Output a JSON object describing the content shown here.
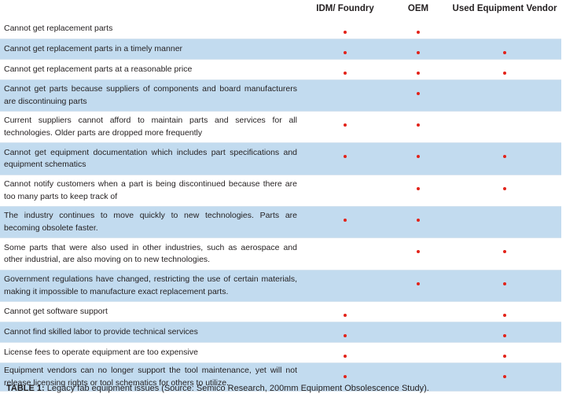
{
  "table": {
    "headers": {
      "issue": "",
      "idm": "IDM/ Foundry",
      "oem": "OEM",
      "used": "Used Equipment Vendor"
    },
    "marker_color": "#e2231a",
    "rows": [
      {
        "issue": "Cannot get replacement parts",
        "idm": true,
        "oem": true,
        "used": false
      },
      {
        "issue": "Cannot get replacement parts in a timely manner",
        "idm": true,
        "oem": true,
        "used": true
      },
      {
        "issue": "Cannot get replacement parts at a reasonable price",
        "idm": true,
        "oem": true,
        "used": true
      },
      {
        "issue": "Cannot get parts because suppliers of components and board manufacturers are discontinuing parts",
        "idm": false,
        "oem": true,
        "used": false
      },
      {
        "issue": "Current suppliers cannot afford to maintain parts and services for all technologies.  Older parts are dropped more frequently",
        "idm": true,
        "oem": true,
        "used": false
      },
      {
        "issue": "Cannot get equipment documentation which includes part specifications and equipment schematics",
        "idm": true,
        "oem": true,
        "used": true
      },
      {
        "issue": "Cannot notify customers when a part is being discontinued because there are too many parts to keep track of",
        "idm": false,
        "oem": true,
        "used": true
      },
      {
        "issue": "The industry continues to move quickly to new technologies.  Parts are becoming obsolete faster.",
        "idm": true,
        "oem": true,
        "used": false
      },
      {
        "issue": "Some parts that were also used in other industries, such as aerospace and other industrial, are also moving on to new technologies.",
        "idm": false,
        "oem": true,
        "used": true
      },
      {
        "issue": "Government regulations have changed, restricting the use of certain materials, making it impossible to manufacture exact replacement parts.",
        "idm": false,
        "oem": true,
        "used": true
      },
      {
        "issue": "Cannot get software support",
        "idm": true,
        "oem": false,
        "used": true
      },
      {
        "issue": "Cannot find skilled labor to provide technical services",
        "idm": true,
        "oem": false,
        "used": true
      },
      {
        "issue": "License fees to operate equipment are too expensive",
        "idm": true,
        "oem": false,
        "used": true
      },
      {
        "issue": "Equipment vendors can no longer support the tool maintenance, yet will not release licensing rights or tool schematics for others to utilize.",
        "idm": true,
        "oem": false,
        "used": true
      }
    ]
  },
  "caption": {
    "label": "TABLE 1:",
    "text": " Legacy fab equipment issues (Source: Semico Research, 200mm Equipment Obsolescence Study)."
  }
}
